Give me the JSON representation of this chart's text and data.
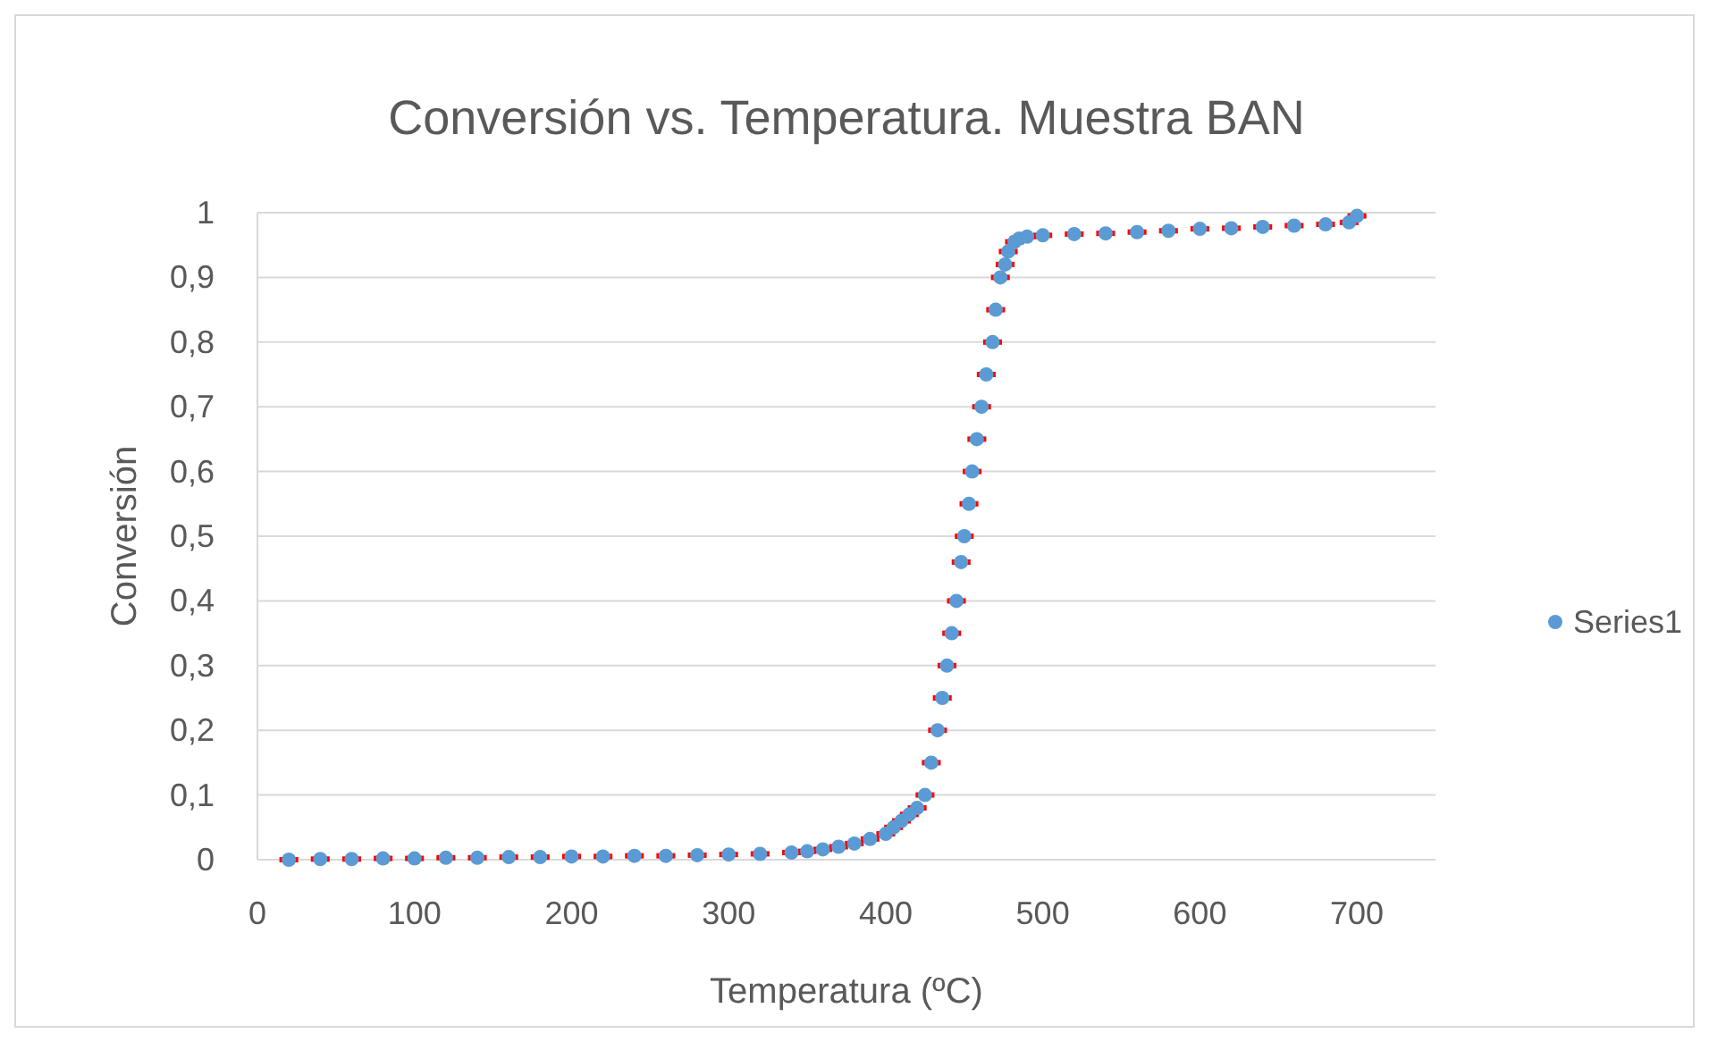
{
  "chart_data": {
    "type": "scatter",
    "title": "Conversión vs. Temperatura. Muestra BAN",
    "xlabel": "Temperatura (ºC)",
    "ylabel": "Conversión",
    "xlim": [
      0,
      750
    ],
    "xticks": [
      0,
      100,
      200,
      300,
      400,
      500,
      600,
      700
    ],
    "ylim": [
      0,
      1
    ],
    "yticks": [
      {
        "value": 0,
        "label": "0"
      },
      {
        "value": 0.1,
        "label": "0,1"
      },
      {
        "value": 0.2,
        "label": "0,2"
      },
      {
        "value": 0.3,
        "label": "0,3"
      },
      {
        "value": 0.4,
        "label": "0,4"
      },
      {
        "value": 0.5,
        "label": "0,5"
      },
      {
        "value": 0.6,
        "label": "0,6"
      },
      {
        "value": 0.7,
        "label": "0,7"
      },
      {
        "value": 0.8,
        "label": "0,8"
      },
      {
        "value": 0.9,
        "label": "0,9"
      },
      {
        "value": 1,
        "label": "1"
      }
    ],
    "grid": "y",
    "legend": "right",
    "marker": "circle",
    "series": [
      {
        "name": "Series1",
        "color": "#5b9bd5",
        "x": [
          20,
          40,
          60,
          80,
          100,
          120,
          140,
          160,
          180,
          200,
          220,
          240,
          260,
          280,
          300,
          320,
          340,
          350,
          360,
          370,
          380,
          390,
          400,
          405,
          410,
          415,
          420,
          425,
          429,
          433,
          436,
          439,
          442,
          445,
          448,
          450,
          453,
          455,
          458,
          461,
          464,
          468,
          470,
          473,
          476,
          478,
          482,
          485,
          490,
          500,
          520,
          540,
          560,
          580,
          600,
          620,
          640,
          660,
          680,
          695,
          700
        ],
        "values": [
          0,
          0.001,
          0.001,
          0.002,
          0.002,
          0.003,
          0.003,
          0.004,
          0.004,
          0.005,
          0.005,
          0.006,
          0.006,
          0.007,
          0.008,
          0.009,
          0.011,
          0.013,
          0.016,
          0.02,
          0.025,
          0.032,
          0.04,
          0.05,
          0.06,
          0.07,
          0.08,
          0.1,
          0.15,
          0.2,
          0.25,
          0.3,
          0.35,
          0.4,
          0.46,
          0.5,
          0.55,
          0.6,
          0.65,
          0.7,
          0.75,
          0.8,
          0.85,
          0.9,
          0.92,
          0.94,
          0.955,
          0.96,
          0.963,
          0.965,
          0.967,
          0.968,
          0.97,
          0.972,
          0.975,
          0.976,
          0.978,
          0.98,
          0.982,
          0.985,
          0.995
        ],
        "xerrors": [
          6,
          6,
          6,
          6,
          6,
          6,
          6,
          6,
          6,
          6,
          6,
          6,
          6,
          6,
          6,
          6,
          6,
          6,
          6,
          6,
          6,
          6,
          6,
          6,
          6,
          6,
          6,
          6,
          6,
          6,
          6,
          6,
          6,
          6,
          6,
          6,
          6,
          6,
          6,
          6,
          6,
          6,
          6,
          6,
          6,
          6,
          6,
          6,
          6,
          6,
          6,
          6,
          6,
          6,
          6,
          6,
          6,
          6,
          6,
          6,
          6
        ]
      }
    ]
  }
}
